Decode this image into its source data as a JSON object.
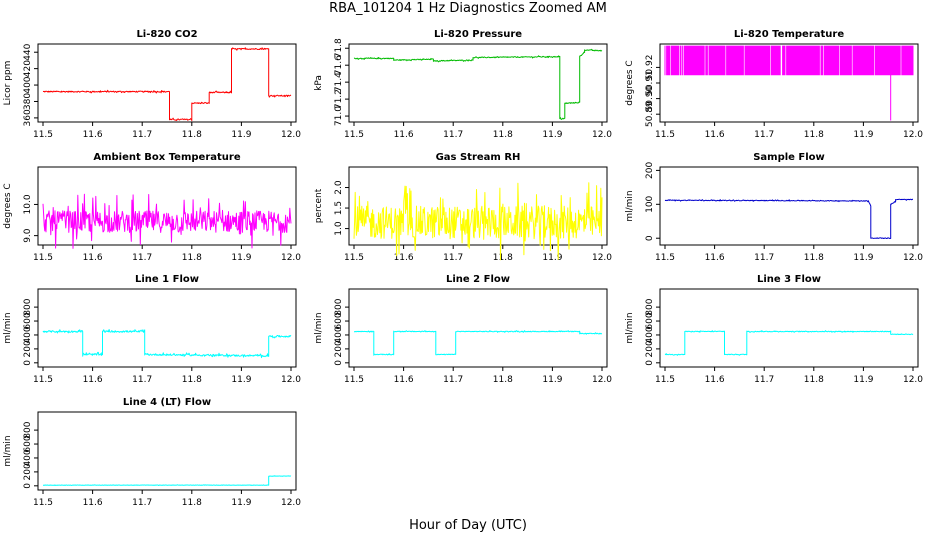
{
  "figure": {
    "title": "RBA_101204  1 Hz Diagnostics Zoomed AM",
    "xlabel": "Hour of Day (UTC)"
  },
  "chart_data": [
    {
      "type": "line",
      "title": "Li-820 CO2",
      "ylabel": "Licor ppm",
      "color": "#ff0000",
      "xlim": [
        11.5,
        12.0
      ],
      "ylim": [
        355,
        450
      ],
      "xticks": [
        "11.5",
        "11.6",
        "11.7",
        "11.8",
        "11.9",
        "12.0"
      ],
      "yticks": [
        "360",
        "380",
        "400",
        "420",
        "440"
      ],
      "noise": 0.7,
      "series": [
        {
          "x": [
            11.5,
            11.755,
            11.755,
            11.8,
            11.8,
            11.835,
            11.835,
            11.88,
            11.88,
            11.955,
            11.955,
            12.0
          ],
          "y": [
            392,
            392,
            358,
            358,
            378,
            378,
            391,
            391,
            444,
            444,
            387,
            387
          ]
        }
      ]
    },
    {
      "type": "line",
      "title": "Li-820 Pressure",
      "ylabel": "kPa",
      "color": "#00bb00",
      "xlim": [
        11.5,
        12.0
      ],
      "ylim": [
        70.93,
        71.85
      ],
      "xticks": [
        "11.5",
        "11.6",
        "11.7",
        "11.8",
        "11.9",
        "12.0"
      ],
      "yticks": [
        "71.0",
        "71.2",
        "71.4",
        "71.6",
        "71.8"
      ],
      "noise": 0.005,
      "series": [
        {
          "x": [
            11.5,
            11.58,
            11.58,
            11.66,
            11.66,
            11.74,
            11.74,
            11.9,
            11.915,
            11.915,
            11.925,
            11.925,
            11.955,
            11.955,
            11.965,
            11.965,
            12.0
          ],
          "y": [
            71.68,
            71.68,
            71.66,
            71.67,
            71.65,
            71.66,
            71.69,
            71.7,
            71.7,
            70.97,
            70.97,
            71.15,
            71.16,
            71.7,
            71.76,
            71.78,
            71.77
          ]
        }
      ]
    },
    {
      "type": "line",
      "title": "Li-820 Temperature",
      "ylabel": "degrees C",
      "color": "#ff00ff",
      "xlim": [
        11.5,
        12.0
      ],
      "ylim": [
        50.885,
        50.935
      ],
      "xticks": [
        "11.5",
        "11.6",
        "11.7",
        "11.8",
        "11.9",
        "12.0"
      ],
      "yticks": [
        "50.89",
        "50.90",
        "50.91",
        "50.92"
      ],
      "noise": 0,
      "series": [
        {
          "x": [
            11.5,
            12.0
          ],
          "y": [
            50.915,
            50.915
          ]
        }
      ],
      "band": [
        50.915,
        50.934
      ]
    },
    {
      "type": "line",
      "title": "Ambient Box Temperature",
      "ylabel": "degrees C",
      "color": "#ff00ff",
      "xlim": [
        11.5,
        12.0
      ],
      "ylim": [
        8.7,
        11.2
      ],
      "xticks": [
        "11.5",
        "11.6",
        "11.7",
        "11.8",
        "11.9",
        "12.0"
      ],
      "yticks": [
        "9.0",
        "10.0"
      ],
      "noise": 0.35,
      "series": [
        {
          "x": [
            11.5,
            12.0
          ],
          "y": [
            9.45,
            9.45
          ]
        }
      ]
    },
    {
      "type": "line",
      "title": "Gas Stream RH",
      "ylabel": "percent",
      "color": "#ffff00",
      "xlim": [
        11.5,
        12.0
      ],
      "ylim": [
        0.6,
        2.5
      ],
      "xticks": [
        "11.5",
        "11.6",
        "11.7",
        "11.8",
        "11.9",
        "12.0"
      ],
      "yticks": [
        "1.0",
        "1.5",
        "2.0"
      ],
      "noise": 0.4,
      "series": [
        {
          "x": [
            11.5,
            12.0
          ],
          "y": [
            1.15,
            1.15
          ]
        }
      ]
    },
    {
      "type": "line",
      "title": "Sample Flow",
      "ylabel": "ml/min",
      "color": "#0000cc",
      "xlim": [
        11.5,
        12.0
      ],
      "ylim": [
        -20,
        210
      ],
      "xticks": [
        "11.5",
        "11.6",
        "11.7",
        "11.8",
        "11.9",
        "12.0"
      ],
      "yticks": [
        "0",
        "100",
        "200"
      ],
      "noise": 1,
      "series": [
        {
          "x": [
            11.5,
            11.91,
            11.915,
            11.915,
            11.955,
            11.955,
            11.965,
            11.965,
            12.0
          ],
          "y": [
            112,
            110,
            95,
            0,
            0,
            100,
            108,
            114,
            114
          ]
        }
      ]
    },
    {
      "type": "line",
      "title": "Line 1 Flow",
      "ylabel": "ml/min",
      "color": "#00ffff",
      "xlim": [
        11.5,
        12.0
      ],
      "ylim": [
        -60,
        1060
      ],
      "xticks": [
        "11.5",
        "11.6",
        "11.7",
        "11.8",
        "11.9",
        "12.0"
      ],
      "yticks": [
        "0",
        "200",
        "400",
        "600",
        "800"
      ],
      "noise": 12,
      "series": [
        {
          "x": [
            11.5,
            11.58,
            11.58,
            11.62,
            11.62,
            11.705,
            11.705,
            11.955,
            11.955,
            12.0
          ],
          "y": [
            450,
            450,
            120,
            120,
            450,
            450,
            120,
            100,
            380,
            380
          ]
        }
      ]
    },
    {
      "type": "line",
      "title": "Line 2 Flow",
      "ylabel": "ml/min",
      "color": "#00ffff",
      "xlim": [
        11.5,
        12.0
      ],
      "ylim": [
        -60,
        1060
      ],
      "xticks": [
        "11.5",
        "11.6",
        "11.7",
        "11.8",
        "11.9",
        "12.0"
      ],
      "yticks": [
        "0",
        "200",
        "400",
        "600",
        "800"
      ],
      "noise": 5,
      "series": [
        {
          "x": [
            11.5,
            11.54,
            11.54,
            11.58,
            11.58,
            11.665,
            11.665,
            11.705,
            11.705,
            11.955,
            11.955,
            12.0
          ],
          "y": [
            450,
            450,
            120,
            120,
            450,
            450,
            120,
            120,
            450,
            450,
            420,
            420
          ]
        }
      ]
    },
    {
      "type": "line",
      "title": "Line 3 Flow",
      "ylabel": "ml/min",
      "color": "#00ffff",
      "xlim": [
        11.5,
        12.0
      ],
      "ylim": [
        -60,
        1060
      ],
      "xticks": [
        "11.5",
        "11.6",
        "11.7",
        "11.8",
        "11.9",
        "12.0"
      ],
      "yticks": [
        "0",
        "200",
        "400",
        "600",
        "800"
      ],
      "noise": 5,
      "series": [
        {
          "x": [
            11.5,
            11.54,
            11.54,
            11.62,
            11.62,
            11.665,
            11.665,
            11.955,
            11.955,
            12.0
          ],
          "y": [
            120,
            120,
            450,
            450,
            120,
            120,
            450,
            450,
            410,
            410
          ]
        }
      ]
    },
    {
      "type": "line",
      "title": "Line 4 (LT) Flow",
      "ylabel": "ml/min",
      "color": "#00ffff",
      "xlim": [
        11.5,
        12.0
      ],
      "ylim": [
        -60,
        1060
      ],
      "xticks": [
        "11.5",
        "11.6",
        "11.7",
        "11.8",
        "11.9",
        "12.0"
      ],
      "yticks": [
        "0",
        "200",
        "400",
        "600",
        "800"
      ],
      "noise": 2,
      "series": [
        {
          "x": [
            11.5,
            11.955,
            11.955,
            12.0
          ],
          "y": [
            10,
            10,
            140,
            140
          ]
        }
      ]
    }
  ]
}
